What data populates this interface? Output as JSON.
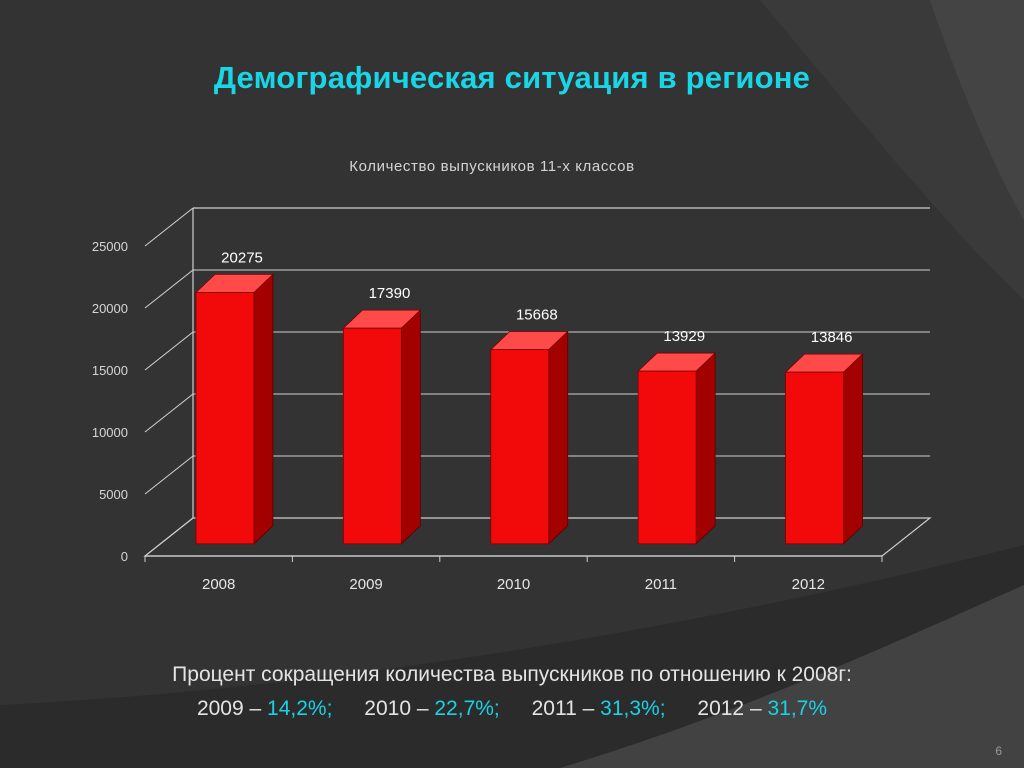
{
  "slide": {
    "title": "Демографическая ситуация в регионе",
    "page_number": "6"
  },
  "colors": {
    "background": "#333333",
    "title": "#18d6e6",
    "bar_front": "#f20a0a",
    "bar_side": "#a30000",
    "bar_top": "#ff4a4a",
    "percent_highlight": "#19d2e6"
  },
  "chart_data": {
    "type": "bar",
    "style": "3d-column",
    "title": "Количество выпускников 11-х классов",
    "categories": [
      "2008",
      "2009",
      "2010",
      "2011",
      "2012"
    ],
    "values": [
      20275,
      17390,
      15668,
      13929,
      13846
    ],
    "data_labels": [
      "20275",
      "17390",
      "15668",
      "13929",
      "13846"
    ],
    "ylim": [
      0,
      25000
    ],
    "yticks": [
      0,
      5000,
      10000,
      15000,
      20000,
      25000
    ],
    "ytick_labels": [
      "0",
      "5000",
      "10000",
      "15000",
      "20000",
      "25000"
    ],
    "grid": true,
    "legend": "none",
    "xlabel": "",
    "ylabel": ""
  },
  "caption": {
    "line1": "Процент сокращения количества выпускников по отношению к 2008г:",
    "items": [
      {
        "year": "2009",
        "dash": "–",
        "percent": "14,2%;"
      },
      {
        "year": "2010",
        "dash": "–",
        "percent": "22,7%;"
      },
      {
        "year": "2011",
        "dash": "–",
        "percent": "31,3%;"
      },
      {
        "year": "2012",
        "dash": "–",
        "percent": "31,7%"
      }
    ]
  }
}
